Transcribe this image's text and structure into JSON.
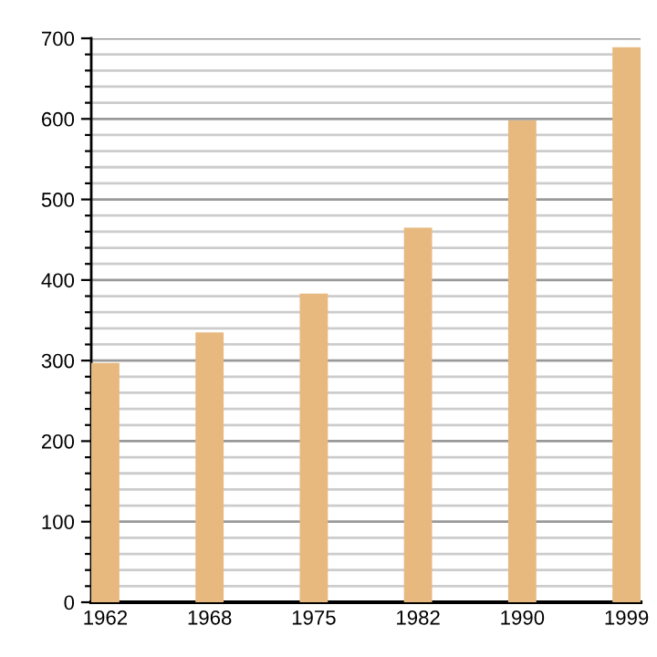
{
  "chart_data": {
    "type": "bar",
    "categories": [
      "1962",
      "1968",
      "1975",
      "1982",
      "1990",
      "1999"
    ],
    "values": [
      297,
      335,
      383,
      465,
      598,
      689
    ],
    "color": "#e8b97f",
    "ylim": [
      0,
      700
    ],
    "yticks": [
      0,
      {
        "value": 20,
        "label": null
      },
      {
        "value": 40,
        "label": null
      },
      {
        "value": 60,
        "label": null
      },
      {
        "value": 80,
        "label": null
      },
      100,
      {
        "value": 120,
        "label": null
      },
      {
        "value": 140,
        "label": null
      },
      {
        "value": 160,
        "label": null
      },
      {
        "value": 180,
        "label": null
      },
      200,
      {
        "value": 220,
        "label": null
      },
      {
        "value": 240,
        "label": null
      },
      {
        "value": 260,
        "label": null
      },
      {
        "value": 280,
        "label": null
      },
      300,
      {
        "value": 320,
        "label": null
      },
      {
        "value": 340,
        "label": null
      },
      {
        "value": 360,
        "label": null
      },
      {
        "value": 380,
        "label": null
      },
      400,
      {
        "value": 420,
        "label": null
      },
      {
        "value": 440,
        "label": null
      },
      {
        "value": 460,
        "label": null
      },
      {
        "value": 480,
        "label": null
      },
      500,
      {
        "value": 520,
        "label": null
      },
      {
        "value": 540,
        "label": null
      },
      {
        "value": 560,
        "label": null
      },
      {
        "value": 580,
        "label": null
      },
      600,
      {
        "value": 620,
        "label": null
      },
      {
        "value": 640,
        "label": null
      },
      {
        "value": 660,
        "label": null
      },
      {
        "value": 680,
        "label": null
      },
      700
    ],
    "grid": "y"
  }
}
